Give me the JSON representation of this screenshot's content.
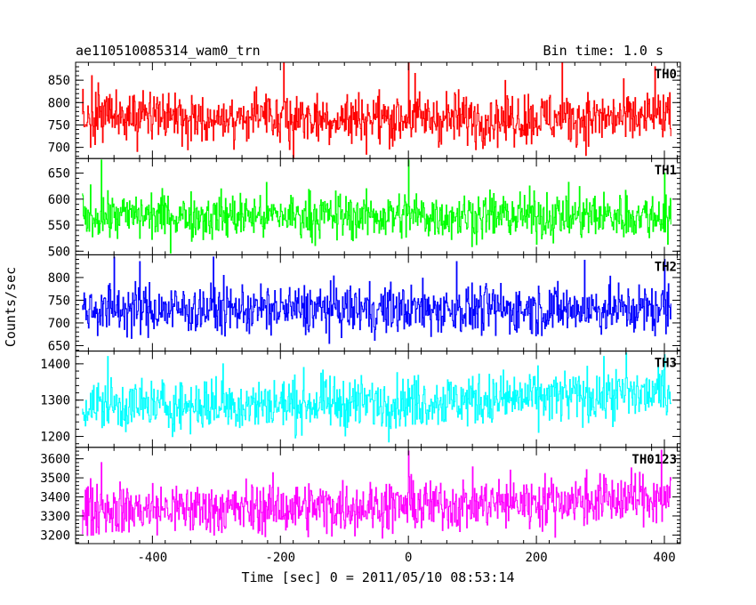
{
  "header": {
    "title": "ae110510085314_wam0_trn",
    "bin_time": "Bin time: 1.0 s"
  },
  "chart_data": {
    "type": "line",
    "xlabel": "Time [sec] 0 = 2011/05/10 08:53:14",
    "ylabel": "Counts/sec",
    "xlim": [
      -520,
      425
    ],
    "xticks": [
      -400,
      -200,
      0,
      200,
      400
    ],
    "x_start": -510,
    "x_end": 410,
    "x_step": 1,
    "grid": false,
    "panels": [
      {
        "name": "TH0",
        "color": "#ff0000",
        "ylim": [
          675,
          890
        ],
        "yticks": [
          700,
          750,
          800,
          850
        ],
        "mean": 765,
        "spread": 32,
        "spikes": [
          [
            -495,
            860
          ],
          [
            -195,
            890
          ],
          [
            0,
            890
          ],
          [
            10,
            865
          ],
          [
            240,
            890
          ],
          [
            385,
            880
          ]
        ]
      },
      {
        "name": "TH1",
        "color": "#00ff00",
        "ylim": [
          493,
          678
        ],
        "yticks": [
          500,
          550,
          600,
          650
        ],
        "mean": 568,
        "spread": 25,
        "spikes": [
          [
            -480,
            675
          ],
          [
            0,
            675
          ],
          [
            400,
            650
          ]
        ]
      },
      {
        "name": "TH2",
        "color": "#0000ff",
        "ylim": [
          638,
          850
        ],
        "yticks": [
          650,
          700,
          750,
          800
        ],
        "mean": 730,
        "spread": 30,
        "spikes": [
          [
            -460,
            845
          ],
          [
            -420,
            835
          ],
          [
            -305,
            845
          ],
          [
            75,
            835
          ],
          [
            275,
            838
          ],
          [
            400,
            840
          ]
        ]
      },
      {
        "name": "TH3",
        "color": "#00ffff",
        "ylim": [
          1170,
          1435
        ],
        "yticks": [
          1200,
          1300,
          1400
        ],
        "mean": 1285,
        "spread": 40,
        "trend": 35,
        "spikes": [
          [
            -470,
            1420
          ],
          [
            -290,
            1400
          ],
          [
            340,
            1430
          ],
          [
            400,
            1425
          ]
        ]
      },
      {
        "name": "TH0123",
        "color": "#ff00ff",
        "ylim": [
          3155,
          3660
        ],
        "yticks": [
          3200,
          3300,
          3400,
          3500,
          3600
        ],
        "mean": 3335,
        "spread": 75,
        "trend": 65,
        "spikes": [
          [
            -480,
            3580
          ],
          [
            0,
            3640
          ],
          [
            395,
            3645
          ]
        ]
      }
    ]
  }
}
